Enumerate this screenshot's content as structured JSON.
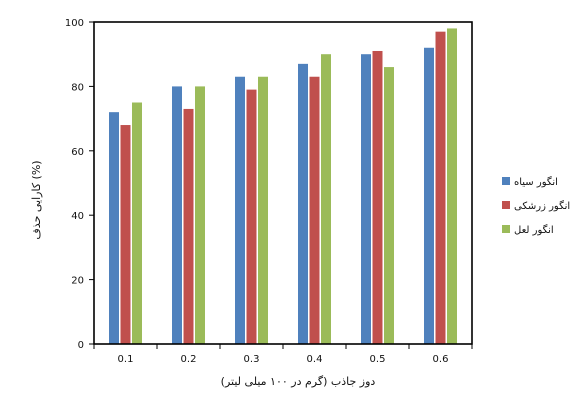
{
  "chart_data": {
    "type": "bar",
    "title": "",
    "xlabel": "دوز جاذب (گرم در ۱۰۰ میلی لیتر)",
    "ylabel": "کارایی حذف (%)",
    "categories": [
      "0.1",
      "0.2",
      "0.3",
      "0.4",
      "0.5",
      "0.6"
    ],
    "ylim": [
      0,
      100
    ],
    "yticks": [
      0,
      20,
      40,
      60,
      80,
      100
    ],
    "grid": false,
    "legend_position": "right",
    "series": [
      {
        "name": "انگور سیاه",
        "color": "#4f81bd",
        "values": [
          72,
          80,
          83,
          87,
          90,
          92
        ]
      },
      {
        "name": "انگور زرشکی",
        "color": "#c0504d",
        "values": [
          68,
          73,
          79,
          83,
          91,
          97
        ]
      },
      {
        "name": "انگور لعل",
        "color": "#9bbb59",
        "values": [
          75,
          80,
          83,
          90,
          86,
          98
        ]
      }
    ]
  }
}
